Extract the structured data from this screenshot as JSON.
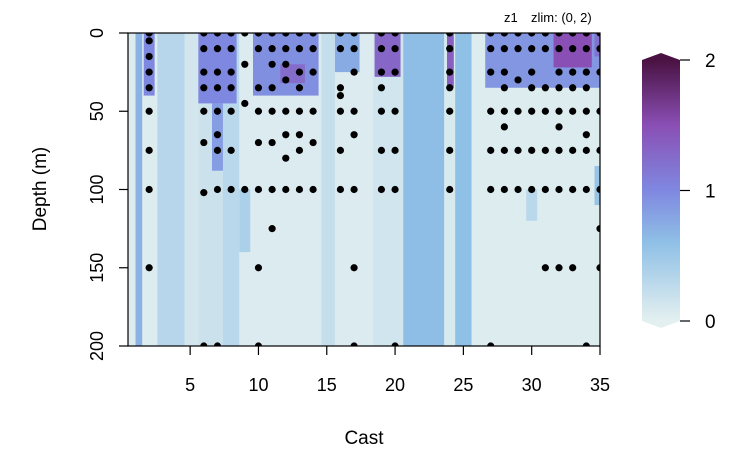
{
  "chart_data": {
    "type": "heatmap",
    "header_label": "z1",
    "zlim_label": "zlim: (0, 2)",
    "xlabel": "Cast",
    "ylabel": "Depth (m)",
    "xlim": [
      1,
      35
    ],
    "ylim": [
      200,
      0
    ],
    "zlim": [
      0,
      2
    ],
    "xticks": [
      5,
      10,
      15,
      20,
      25,
      30,
      35
    ],
    "yticks": [
      0,
      50,
      100,
      150,
      200
    ],
    "colorbar_ticks": [
      0,
      1,
      2
    ],
    "colors": {
      "low": "#e4f0f0",
      "mid_low": "#8fc0e6",
      "mid": "#7f88e0",
      "mid_high": "#8a4fb5",
      "high": "#4a1242",
      "dot": "#000000",
      "axis": "#000000"
    },
    "background_columns": [
      {
        "x0": 1.0,
        "x1": 1.5,
        "z": 0.7
      },
      {
        "x0": 1.5,
        "x1": 2.6,
        "z": 0.05
      },
      {
        "x0": 2.6,
        "x1": 4.6,
        "z": 0.32
      },
      {
        "x0": 4.6,
        "x1": 5.6,
        "z": 0.12
      },
      {
        "x0": 5.6,
        "x1": 7.4,
        "z": 0.18
      },
      {
        "x0": 7.4,
        "x1": 8.6,
        "z": 0.3
      },
      {
        "x0": 8.6,
        "x1": 14.6,
        "z": 0.06
      },
      {
        "x0": 14.6,
        "x1": 15.6,
        "z": 0.22
      },
      {
        "x0": 15.6,
        "x1": 18.4,
        "z": 0.06
      },
      {
        "x0": 18.4,
        "x1": 20.6,
        "z": 0.14
      },
      {
        "x0": 20.6,
        "x1": 23.6,
        "z": 0.62
      },
      {
        "x0": 23.6,
        "x1": 24.4,
        "z": 0.08
      },
      {
        "x0": 24.4,
        "x1": 25.6,
        "z": 0.6
      },
      {
        "x0": 25.6,
        "x1": 35.0,
        "z": 0.05
      }
    ],
    "patches": [
      {
        "x0": 1.6,
        "x1": 2.4,
        "y0": 0,
        "y1": 40,
        "z": 1.0
      },
      {
        "x0": 5.6,
        "x1": 8.4,
        "y0": 0,
        "y1": 45,
        "z": 1.0
      },
      {
        "x0": 6.6,
        "x1": 7.4,
        "y0": 45,
        "y1": 88,
        "z": 0.85
      },
      {
        "x0": 8.6,
        "x1": 9.4,
        "y0": 100,
        "y1": 140,
        "z": 0.4
      },
      {
        "x0": 9.6,
        "x1": 14.4,
        "y0": 0,
        "y1": 40,
        "z": 0.95
      },
      {
        "x0": 11.6,
        "x1": 13.4,
        "y0": 20,
        "y1": 32,
        "z": 1.25
      },
      {
        "x0": 15.6,
        "x1": 17.4,
        "y0": 0,
        "y1": 25,
        "z": 0.75
      },
      {
        "x0": 18.5,
        "x1": 20.4,
        "y0": 0,
        "y1": 28,
        "z": 1.3
      },
      {
        "x0": 23.8,
        "x1": 24.3,
        "y0": 0,
        "y1": 35,
        "z": 1.35
      },
      {
        "x0": 26.6,
        "x1": 35.0,
        "y0": 0,
        "y1": 35,
        "z": 0.9
      },
      {
        "x0": 31.6,
        "x1": 34.4,
        "y0": 0,
        "y1": 22,
        "z": 1.5
      },
      {
        "x0": 34.6,
        "x1": 35.0,
        "y0": 0,
        "y1": 15,
        "z": 1.2
      },
      {
        "x0": 29.6,
        "x1": 30.4,
        "y0": 100,
        "y1": 120,
        "z": 0.3
      },
      {
        "x0": 34.6,
        "x1": 35.0,
        "y0": 85,
        "y1": 110,
        "z": 0.55
      }
    ],
    "samples": [
      {
        "cast": 2,
        "depths": [
          0,
          5,
          15,
          25,
          35,
          50,
          75,
          100,
          150
        ]
      },
      {
        "cast": 6,
        "depths": [
          0,
          10,
          25,
          35,
          50,
          70,
          102,
          200
        ]
      },
      {
        "cast": 7,
        "depths": [
          0,
          10,
          25,
          35,
          50,
          65,
          75,
          100,
          200
        ]
      },
      {
        "cast": 8,
        "depths": [
          0,
          10,
          25,
          35,
          50,
          75,
          100
        ]
      },
      {
        "cast": 9,
        "depths": [
          0,
          20,
          45,
          100
        ]
      },
      {
        "cast": 10,
        "depths": [
          0,
          10,
          35,
          50,
          70,
          100,
          150,
          200
        ]
      },
      {
        "cast": 11,
        "depths": [
          0,
          10,
          20,
          35,
          50,
          70,
          100,
          125
        ]
      },
      {
        "cast": 12,
        "depths": [
          0,
          10,
          20,
          30,
          50,
          65,
          80,
          100
        ]
      },
      {
        "cast": 13,
        "depths": [
          0,
          10,
          25,
          35,
          50,
          65,
          75,
          100
        ]
      },
      {
        "cast": 14,
        "depths": [
          0,
          10,
          25,
          50,
          70,
          100
        ]
      },
      {
        "cast": 16,
        "depths": [
          0,
          10,
          35,
          40,
          50,
          75,
          100
        ]
      },
      {
        "cast": 17,
        "depths": [
          0,
          10,
          25,
          50,
          65,
          100,
          150,
          200
        ]
      },
      {
        "cast": 19,
        "depths": [
          0,
          10,
          25,
          35,
          50,
          75,
          100
        ]
      },
      {
        "cast": 20,
        "depths": [
          0,
          10,
          25,
          50,
          75,
          100,
          200
        ]
      },
      {
        "cast": 24,
        "depths": [
          0,
          10,
          25,
          35,
          50,
          75,
          100
        ]
      },
      {
        "cast": 27,
        "depths": [
          0,
          10,
          25,
          50,
          75,
          100,
          200
        ]
      },
      {
        "cast": 28,
        "depths": [
          0,
          10,
          25,
          35,
          50,
          60,
          75,
          100
        ]
      },
      {
        "cast": 29,
        "depths": [
          0,
          10,
          30,
          50,
          75,
          100
        ]
      },
      {
        "cast": 30,
        "depths": [
          0,
          10,
          25,
          35,
          50,
          75,
          100
        ]
      },
      {
        "cast": 31,
        "depths": [
          0,
          10,
          35,
          50,
          75,
          100,
          150
        ]
      },
      {
        "cast": 32,
        "depths": [
          0,
          10,
          25,
          35,
          50,
          60,
          75,
          100,
          150
        ]
      },
      {
        "cast": 33,
        "depths": [
          0,
          10,
          25,
          35,
          50,
          75,
          100,
          150
        ]
      },
      {
        "cast": 34,
        "depths": [
          0,
          10,
          25,
          35,
          50,
          65,
          75,
          100,
          200
        ]
      },
      {
        "cast": 35,
        "depths": [
          0,
          10,
          25,
          50,
          75,
          100,
          125,
          150
        ]
      }
    ]
  }
}
